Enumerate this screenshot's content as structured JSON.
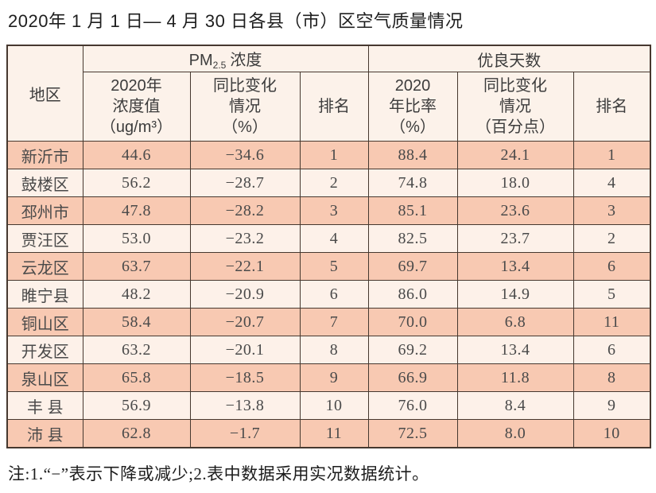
{
  "title": "2020年 1 月 1 日— 4 月 30 日各县（市）区空气质量情况",
  "table": {
    "region_header": "地区",
    "pm_group": {
      "prefix": "PM",
      "sub": "2.5",
      "suffix": "浓度"
    },
    "good_group": "优良天数",
    "sub_headers": {
      "pm_value": [
        "2020年",
        "浓度值",
        "（ug/m³）"
      ],
      "pm_change": [
        "同比变化",
        "情况",
        "（%）"
      ],
      "pm_rank": [
        "排名"
      ],
      "good_rate": [
        "2020",
        "年比率",
        "（%）"
      ],
      "good_change": [
        "同比变化",
        "情况",
        "（百分点）"
      ],
      "good_rank": [
        "排名"
      ]
    }
  },
  "rows": [
    {
      "region": "新沂市",
      "pm_value": "44.6",
      "pm_change": "−34.6",
      "pm_rank": "1",
      "good_rate": "88.4",
      "good_change": "24.1",
      "good_rank": "1"
    },
    {
      "region": "鼓楼区",
      "pm_value": "56.2",
      "pm_change": "−28.7",
      "pm_rank": "2",
      "good_rate": "74.8",
      "good_change": "18.0",
      "good_rank": "4"
    },
    {
      "region": "邳州市",
      "pm_value": "47.8",
      "pm_change": "−28.2",
      "pm_rank": "3",
      "good_rate": "85.1",
      "good_change": "23.6",
      "good_rank": "3"
    },
    {
      "region": "贾汪区",
      "pm_value": "53.0",
      "pm_change": "−23.2",
      "pm_rank": "4",
      "good_rate": "82.5",
      "good_change": "23.7",
      "good_rank": "2"
    },
    {
      "region": "云龙区",
      "pm_value": "63.7",
      "pm_change": "−22.1",
      "pm_rank": "5",
      "good_rate": "69.7",
      "good_change": "13.4",
      "good_rank": "6"
    },
    {
      "region": "睢宁县",
      "pm_value": "48.2",
      "pm_change": "−20.9",
      "pm_rank": "6",
      "good_rate": "86.0",
      "good_change": "14.9",
      "good_rank": "5"
    },
    {
      "region": "铜山区",
      "pm_value": "58.4",
      "pm_change": "−20.7",
      "pm_rank": "7",
      "good_rate": "70.0",
      "good_change": "6.8",
      "good_rank": "11"
    },
    {
      "region": "开发区",
      "pm_value": "63.2",
      "pm_change": "−20.1",
      "pm_rank": "8",
      "good_rate": "69.2",
      "good_change": "13.4",
      "good_rank": "6"
    },
    {
      "region": "泉山区",
      "pm_value": "65.8",
      "pm_change": "−18.5",
      "pm_rank": "9",
      "good_rate": "66.9",
      "good_change": "11.8",
      "good_rank": "8"
    },
    {
      "region": "丰 县",
      "pm_value": "56.9",
      "pm_change": "−13.8",
      "pm_rank": "10",
      "good_rate": "76.0",
      "good_change": "8.4",
      "good_rank": "9"
    },
    {
      "region": "沛 县",
      "pm_value": "62.8",
      "pm_change": "−1.7",
      "pm_rank": "11",
      "good_rate": "72.5",
      "good_change": "8.0",
      "good_rank": "10"
    }
  ],
  "note": "注:1.“−”表示下降或减少;2.表中数据采用实况数据统计。",
  "colors": {
    "row_odd_bg": "#f8c9b2",
    "row_even_bg": "#fdf1e9",
    "header_bg": "#fcf2ea",
    "border": "#46382f"
  }
}
